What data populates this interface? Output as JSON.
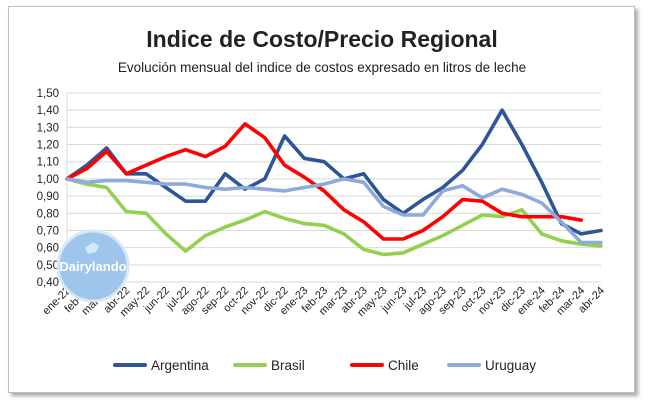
{
  "chart_data": {
    "type": "line",
    "title": "Indice de Costo/Precio Regional",
    "subtitle": "Evolución mensual del indice de costos expresado en litros de leche",
    "xlabel": "",
    "ylabel": "",
    "ylim": [
      0.4,
      1.5
    ],
    "y_ticks": [
      "0,40",
      "0,50",
      "0,60",
      "0,70",
      "0,80",
      "0,90",
      "1,00",
      "1,10",
      "1,20",
      "1,30",
      "1,40",
      "1,50"
    ],
    "grid": true,
    "legend_position": "bottom",
    "watermark": "Dairylando",
    "x": [
      "ene-22",
      "feb-22",
      "mar-22",
      "abr-22",
      "may-22",
      "jun-22",
      "jul-22",
      "ago-22",
      "sep-22",
      "oct-22",
      "nov-22",
      "dic-22",
      "ene-23",
      "feb-23",
      "mar-23",
      "abr-23",
      "may-23",
      "jun-23",
      "jul-23",
      "ago-23",
      "sep-23",
      "oct-23",
      "nov-23",
      "dic-23",
      "ene-24",
      "feb-24",
      "mar-24",
      "abr-24"
    ],
    "series": [
      {
        "name": "Argentina",
        "color": "#2e5597",
        "values": [
          1.0,
          1.08,
          1.18,
          1.03,
          1.03,
          0.95,
          0.87,
          0.87,
          1.03,
          0.94,
          1.0,
          1.25,
          1.12,
          1.1,
          1.0,
          1.03,
          0.88,
          0.8,
          0.88,
          0.95,
          1.05,
          1.2,
          1.4,
          1.2,
          0.98,
          0.74,
          0.68,
          0.7
        ]
      },
      {
        "name": "Brasil",
        "color": "#92d050",
        "values": [
          1.0,
          0.97,
          0.95,
          0.81,
          0.8,
          0.68,
          0.58,
          0.67,
          0.72,
          0.76,
          0.81,
          0.77,
          0.74,
          0.73,
          0.68,
          0.59,
          0.56,
          0.57,
          0.62,
          0.67,
          0.73,
          0.79,
          0.78,
          0.82,
          0.68,
          0.64,
          0.62,
          0.61
        ]
      },
      {
        "name": "Chile",
        "color": "#ff0000",
        "values": [
          1.0,
          1.06,
          1.16,
          1.03,
          1.08,
          1.13,
          1.17,
          1.13,
          1.19,
          1.32,
          1.24,
          1.08,
          1.01,
          0.93,
          0.82,
          0.75,
          0.65,
          0.65,
          0.7,
          0.78,
          0.88,
          0.87,
          0.8,
          0.78,
          0.78,
          0.78,
          0.76,
          null
        ]
      },
      {
        "name": "Uruguay",
        "color": "#8eaadb",
        "values": [
          1.0,
          0.98,
          0.99,
          0.99,
          0.98,
          0.97,
          0.97,
          0.95,
          0.94,
          0.95,
          0.94,
          0.93,
          0.95,
          0.97,
          1.0,
          0.98,
          0.84,
          0.79,
          0.79,
          0.93,
          0.96,
          0.89,
          0.94,
          0.91,
          0.86,
          0.75,
          0.63,
          0.63
        ]
      }
    ]
  }
}
